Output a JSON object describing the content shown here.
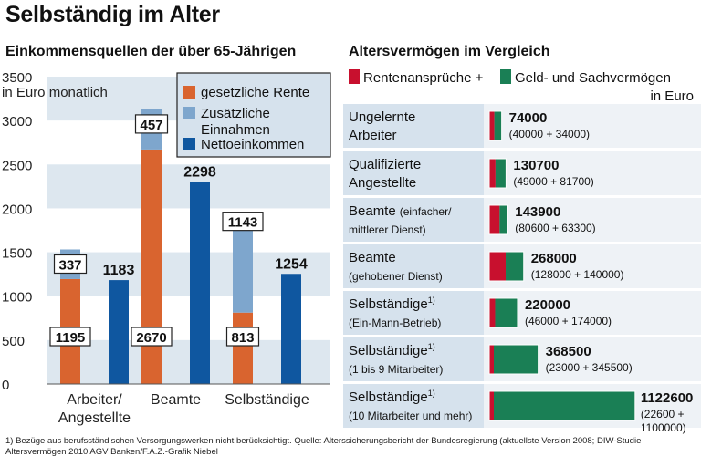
{
  "title": "Selbständig im Alter",
  "left_subtitle": "Einkommensquellen der über 65-Jährigen",
  "right_subtitle": "Altersvermögen im Vergleich",
  "footnote": "1) Bezüge aus berufsständischen Versorgungswerken nicht berücksichtigt. Quelle: Alterssicherungsbericht der Bundesregierung (aktuellste Version 2008; DIW-Studie Altersvermögen 2010 AGV Banken/F.A.Z.-Grafik Niebel",
  "colors": {
    "orange": "#d9642f",
    "lightblue": "#7ea6cd",
    "darkblue": "#0f57a0",
    "red": "#c8102e",
    "green": "#1a7f55",
    "band": "#dde7ef",
    "boxbg": "#d6e2ed"
  },
  "chart_data": [
    {
      "type": "bar",
      "title": "Einkommensquellen der über 65-Jährigen",
      "ylabel": "in Euro monatlich",
      "ylim": [
        0,
        3500
      ],
      "yticks": [
        "0",
        "500",
        "1000",
        "1500",
        "2000",
        "2500",
        "3000",
        "3500"
      ],
      "categories": [
        {
          "line1": "Arbeiter/",
          "line2": "Angestellte"
        },
        {
          "line1": "Beamte",
          "line2": ""
        },
        {
          "line1": "Selbständige",
          "line2": ""
        }
      ],
      "legend": [
        {
          "label": "gesetzliche Rente",
          "label2": "",
          "color": "orange"
        },
        {
          "label": "Zusätzliche",
          "label2": "Einnahmen",
          "color": "lightblue"
        },
        {
          "label": "Nettoeinkommen",
          "label2": "",
          "color": "darkblue"
        }
      ],
      "series": [
        {
          "name": "gesetzliche Rente",
          "values": [
            1195,
            2670,
            813
          ],
          "labels": [
            "1195",
            "2670",
            "813"
          ]
        },
        {
          "name": "Zusätzliche Einnahmen",
          "values": [
            337,
            457,
            1143
          ],
          "labels": [
            "337",
            "457",
            "1143"
          ]
        },
        {
          "name": "Nettoeinkommen",
          "values": [
            1183,
            2298,
            1254
          ],
          "labels": [
            "1183",
            "2298",
            "1254"
          ]
        }
      ]
    },
    {
      "type": "bar",
      "orientation": "horizontal",
      "title": "Altersvermögen im Vergleich",
      "unit": "in Euro",
      "legend": [
        {
          "label": "Rentenansprüche +",
          "color": "red"
        },
        {
          "label": "Geld- und Sachvermögen",
          "color": "green"
        }
      ],
      "rows": [
        {
          "cat1": "Ungelernte",
          "cat1_note": "",
          "cat1_sup": "",
          "cat2": "Arbeiter",
          "cat2_small": false,
          "rente": 40000,
          "geld": 34000,
          "total_label": "74000",
          "detail1": "(40000 + 34000)",
          "detail2": ""
        },
        {
          "cat1": "Qualifizierte",
          "cat1_note": "",
          "cat1_sup": "",
          "cat2": "Angestellte",
          "cat2_small": false,
          "rente": 49000,
          "geld": 81700,
          "total_label": "130700",
          "detail1": "(49000 + 81700)",
          "detail2": ""
        },
        {
          "cat1": "Beamte",
          "cat1_note": "(einfacher/",
          "cat1_sup": "",
          "cat2": "mittlerer Dienst)",
          "cat2_small": true,
          "rente": 80600,
          "geld": 63300,
          "total_label": "143900",
          "detail1": "(80600 + 63300)",
          "detail2": ""
        },
        {
          "cat1": "Beamte",
          "cat1_note": "",
          "cat1_sup": "",
          "cat2": "(gehobener Dienst)",
          "cat2_small": true,
          "rente": 128000,
          "geld": 140000,
          "total_label": "268000",
          "detail1": "(128000 + 140000)",
          "detail2": ""
        },
        {
          "cat1": "Selbständige",
          "cat1_note": "",
          "cat1_sup": "1)",
          "cat2": "(Ein-Mann-Betrieb)",
          "cat2_small": true,
          "rente": 46000,
          "geld": 174000,
          "total_label": "220000",
          "detail1": "(46000 + 174000)",
          "detail2": ""
        },
        {
          "cat1": "Selbständige",
          "cat1_note": "",
          "cat1_sup": "1)",
          "cat2": "(1 bis 9 Mitarbeiter)",
          "cat2_small": true,
          "rente": 23000,
          "geld": 345500,
          "total_label": "368500",
          "detail1": "(23000 + 345500)",
          "detail2": ""
        },
        {
          "cat1": "Selbständige",
          "cat1_note": "",
          "cat1_sup": "1)",
          "cat2": "(10 Mitarbeiter und mehr)",
          "cat2_small": true,
          "rente": 22600,
          "geld": 1100000,
          "total_label": "1122600",
          "detail1": "(22600 +",
          "detail2": "1100000)"
        }
      ]
    }
  ]
}
